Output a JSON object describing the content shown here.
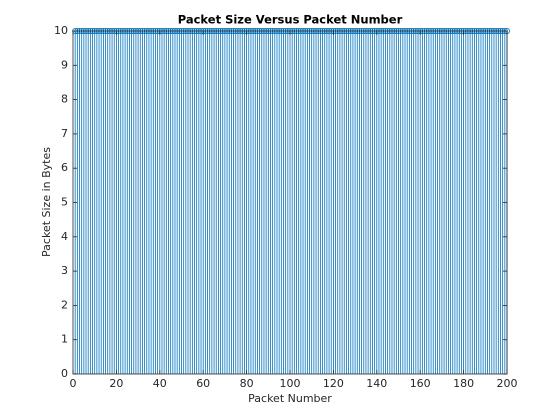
{
  "chart_data": {
    "type": "stem",
    "title": "Packet Size Versus Packet Number",
    "xlabel": "Packet Number",
    "ylabel": "Packet Size in Bytes",
    "x": [
      1,
      2,
      3,
      4,
      5,
      6,
      7,
      8,
      9,
      10,
      11,
      12,
      13,
      14,
      15,
      16,
      17,
      18,
      19,
      20,
      21,
      22,
      23,
      24,
      25,
      26,
      27,
      28,
      29,
      30,
      31,
      32,
      33,
      34,
      35,
      36,
      37,
      38,
      39,
      40,
      41,
      42,
      43,
      44,
      45,
      46,
      47,
      48,
      49,
      50,
      51,
      52,
      53,
      54,
      55,
      56,
      57,
      58,
      59,
      60,
      61,
      62,
      63,
      64,
      65,
      66,
      67,
      68,
      69,
      70,
      71,
      72,
      73,
      74,
      75,
      76,
      77,
      78,
      79,
      80,
      81,
      82,
      83,
      84,
      85,
      86,
      87,
      88,
      89,
      90,
      91,
      92,
      93,
      94,
      95,
      96,
      97,
      98,
      99,
      100,
      101,
      102,
      103,
      104,
      105,
      106,
      107,
      108,
      109,
      110,
      111,
      112,
      113,
      114,
      115,
      116,
      117,
      118,
      119,
      120,
      121,
      122,
      123,
      124,
      125,
      126,
      127,
      128,
      129,
      130,
      131,
      132,
      133,
      134,
      135,
      136,
      137,
      138,
      139,
      140,
      141,
      142,
      143,
      144,
      145,
      146,
      147,
      148,
      149,
      150,
      151,
      152,
      153,
      154,
      155,
      156,
      157,
      158,
      159,
      160,
      161,
      162,
      163,
      164,
      165,
      166,
      167,
      168,
      169,
      170,
      171,
      172,
      173,
      174,
      175,
      176,
      177,
      178,
      179,
      180,
      181,
      182,
      183,
      184,
      185,
      186,
      187,
      188,
      189,
      190,
      191,
      192,
      193,
      194,
      195,
      196,
      197,
      198,
      199,
      200
    ],
    "values": [
      10,
      10,
      10,
      10,
      10,
      10,
      10,
      10,
      10,
      10,
      10,
      10,
      10,
      10,
      10,
      10,
      10,
      10,
      10,
      10,
      10,
      10,
      10,
      10,
      10,
      10,
      10,
      10,
      10,
      10,
      10,
      10,
      10,
      10,
      10,
      10,
      10,
      10,
      10,
      10,
      10,
      10,
      10,
      10,
      10,
      10,
      10,
      10,
      10,
      10,
      10,
      10,
      10,
      10,
      10,
      10,
      10,
      10,
      10,
      10,
      10,
      10,
      10,
      10,
      10,
      10,
      10,
      10,
      10,
      10,
      10,
      10,
      10,
      10,
      10,
      10,
      10,
      10,
      10,
      10,
      10,
      10,
      10,
      10,
      10,
      10,
      10,
      10,
      10,
      10,
      10,
      10,
      10,
      10,
      10,
      10,
      10,
      10,
      10,
      10,
      10,
      10,
      10,
      10,
      10,
      10,
      10,
      10,
      10,
      10,
      10,
      10,
      10,
      10,
      10,
      10,
      10,
      10,
      10,
      10,
      10,
      10,
      10,
      10,
      10,
      10,
      10,
      10,
      10,
      10,
      10,
      10,
      10,
      10,
      10,
      10,
      10,
      10,
      10,
      10,
      10,
      10,
      10,
      10,
      10,
      10,
      10,
      10,
      10,
      10,
      10,
      10,
      10,
      10,
      10,
      10,
      10,
      10,
      10,
      10,
      10,
      10,
      10,
      10,
      10,
      10,
      10,
      10,
      10,
      10,
      10,
      10,
      10,
      10,
      10,
      10,
      10,
      10,
      10,
      10,
      10,
      10,
      10,
      10,
      10,
      10,
      10,
      10,
      10,
      10,
      10,
      10,
      10,
      10,
      10,
      10,
      10,
      10,
      10,
      10
    ],
    "color": "#0072bd",
    "xlim": [
      0,
      200
    ],
    "xticks": [
      0,
      20,
      40,
      60,
      80,
      100,
      120,
      140,
      160,
      180,
      200
    ],
    "ylim": [
      0,
      10
    ],
    "yticks": [
      0,
      1,
      2,
      3,
      4,
      5,
      6,
      7,
      8,
      9,
      10
    ]
  }
}
